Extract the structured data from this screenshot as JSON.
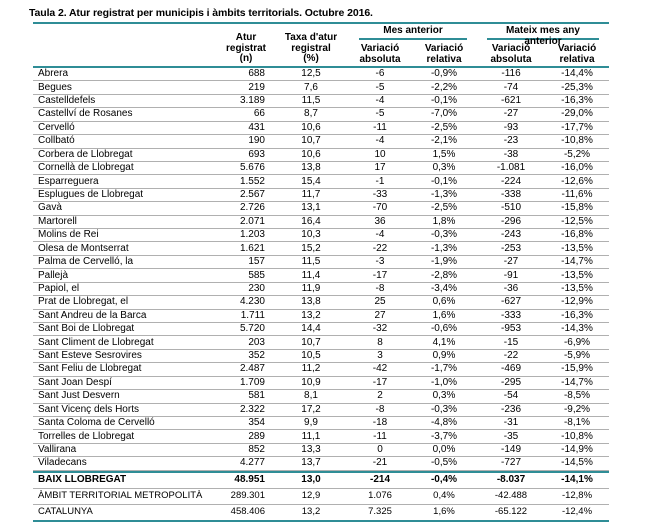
{
  "title": "Taula 2. Atur registrat per municipis i àmbits territorials. Octubre 2016.",
  "colors": {
    "accent_teal": "#2f8d96",
    "row_divider": "#b0b0b0",
    "text": "#000000",
    "background": "#ffffff"
  },
  "table": {
    "headers": {
      "atur": "Atur\nregistrat\n(n)",
      "taxa": "Taxa d'atur\nregistral\n(%)",
      "group_mes_anterior": "Mes anterior",
      "group_mateix_mes": "Mateix mes any anterior",
      "variacio_absoluta_1": "Variació\nabsoluta",
      "variacio_relativa_1": "Variació\nrelativa",
      "variacio_absoluta_2": "Variació\nabsoluta",
      "variacio_relativa_2": "Variació\nrelativa"
    },
    "rows": [
      [
        "Abrera",
        "688",
        "12,5",
        "-6",
        "-0,9%",
        "-116",
        "-14,4%"
      ],
      [
        "Begues",
        "219",
        "7,6",
        "-5",
        "-2,2%",
        "-74",
        "-25,3%"
      ],
      [
        "Castelldefels",
        "3.189",
        "11,5",
        "-4",
        "-0,1%",
        "-621",
        "-16,3%"
      ],
      [
        "Castellví de Rosanes",
        "66",
        "8,7",
        "-5",
        "-7,0%",
        "-27",
        "-29,0%"
      ],
      [
        "Cervelló",
        "431",
        "10,6",
        "-11",
        "-2,5%",
        "-93",
        "-17,7%"
      ],
      [
        "Collbató",
        "190",
        "10,7",
        "-4",
        "-2,1%",
        "-23",
        "-10,8%"
      ],
      [
        "Corbera de Llobregat",
        "693",
        "10,6",
        "10",
        "1,5%",
        "-38",
        "-5,2%"
      ],
      [
        "Cornellà de Llobregat",
        "5.676",
        "13,8",
        "17",
        "0,3%",
        "-1.081",
        "-16,0%"
      ],
      [
        "Esparreguera",
        "1.552",
        "15,4",
        "-1",
        "-0,1%",
        "-224",
        "-12,6%"
      ],
      [
        "Esplugues de Llobregat",
        "2.567",
        "11,7",
        "-33",
        "-1,3%",
        "-338",
        "-11,6%"
      ],
      [
        "Gavà",
        "2.726",
        "13,1",
        "-70",
        "-2,5%",
        "-510",
        "-15,8%"
      ],
      [
        "Martorell",
        "2.071",
        "16,4",
        "36",
        "1,8%",
        "-296",
        "-12,5%"
      ],
      [
        "Molins de Rei",
        "1.203",
        "10,3",
        "-4",
        "-0,3%",
        "-243",
        "-16,8%"
      ],
      [
        "Olesa de Montserrat",
        "1.621",
        "15,2",
        "-22",
        "-1,3%",
        "-253",
        "-13,5%"
      ],
      [
        "Palma de Cervelló, la",
        "157",
        "11,5",
        "-3",
        "-1,9%",
        "-27",
        "-14,7%"
      ],
      [
        "Pallejà",
        "585",
        "11,4",
        "-17",
        "-2,8%",
        "-91",
        "-13,5%"
      ],
      [
        "Papiol, el",
        "230",
        "11,9",
        "-8",
        "-3,4%",
        "-36",
        "-13,5%"
      ],
      [
        "Prat de Llobregat, el",
        "4.230",
        "13,8",
        "25",
        "0,6%",
        "-627",
        "-12,9%"
      ],
      [
        "Sant Andreu de la Barca",
        "1.711",
        "13,2",
        "27",
        "1,6%",
        "-333",
        "-16,3%"
      ],
      [
        "Sant Boi de Llobregat",
        "5.720",
        "14,4",
        "-32",
        "-0,6%",
        "-953",
        "-14,3%"
      ],
      [
        "Sant Climent de Llobregat",
        "203",
        "10,7",
        "8",
        "4,1%",
        "-15",
        "-6,9%"
      ],
      [
        "Sant Esteve Sesrovires",
        "352",
        "10,5",
        "3",
        "0,9%",
        "-22",
        "-5,9%"
      ],
      [
        "Sant Feliu de Llobregat",
        "2.487",
        "11,2",
        "-42",
        "-1,7%",
        "-469",
        "-15,9%"
      ],
      [
        "Sant Joan Despí",
        "1.709",
        "10,9",
        "-17",
        "-1,0%",
        "-295",
        "-14,7%"
      ],
      [
        "Sant Just Desvern",
        "581",
        "8,1",
        "2",
        "0,3%",
        "-54",
        "-8,5%"
      ],
      [
        "Sant Vicenç dels Horts",
        "2.322",
        "17,2",
        "-8",
        "-0,3%",
        "-236",
        "-9,2%"
      ],
      [
        "Santa Coloma de Cervelló",
        "354",
        "9,9",
        "-18",
        "-4,8%",
        "-31",
        "-8,1%"
      ],
      [
        "Torrelles de Llobregat",
        "289",
        "11,1",
        "-11",
        "-3,7%",
        "-35",
        "-10,8%"
      ],
      [
        "Vallirana",
        "852",
        "13,3",
        "0",
        "0,0%",
        "-149",
        "-14,9%"
      ],
      [
        "Viladecans",
        "4.277",
        "13,7",
        "-21",
        "-0,5%",
        "-727",
        "-14,5%"
      ]
    ],
    "summary_rows": [
      {
        "name": "summary-row-baix-llobregat",
        "bold": true,
        "cells": [
          "BAIX LLOBREGAT",
          "48.951",
          "13,0",
          "-214",
          "-0,4%",
          "-8.037",
          "-14,1%"
        ]
      },
      {
        "name": "summary-row-ambit-territorial-metropolita",
        "bold": false,
        "cells": [
          "ÀMBIT TERRITORIAL METROPOLITÀ",
          "289.301",
          "12,9",
          "1.076",
          "0,4%",
          "-42.488",
          "-12,8%"
        ]
      },
      {
        "name": "summary-row-catalunya",
        "bold": false,
        "cells": [
          "CATALUNYA",
          "458.406",
          "13,2",
          "7.325",
          "1,6%",
          "-65.122",
          "-12,4%"
        ]
      }
    ]
  }
}
